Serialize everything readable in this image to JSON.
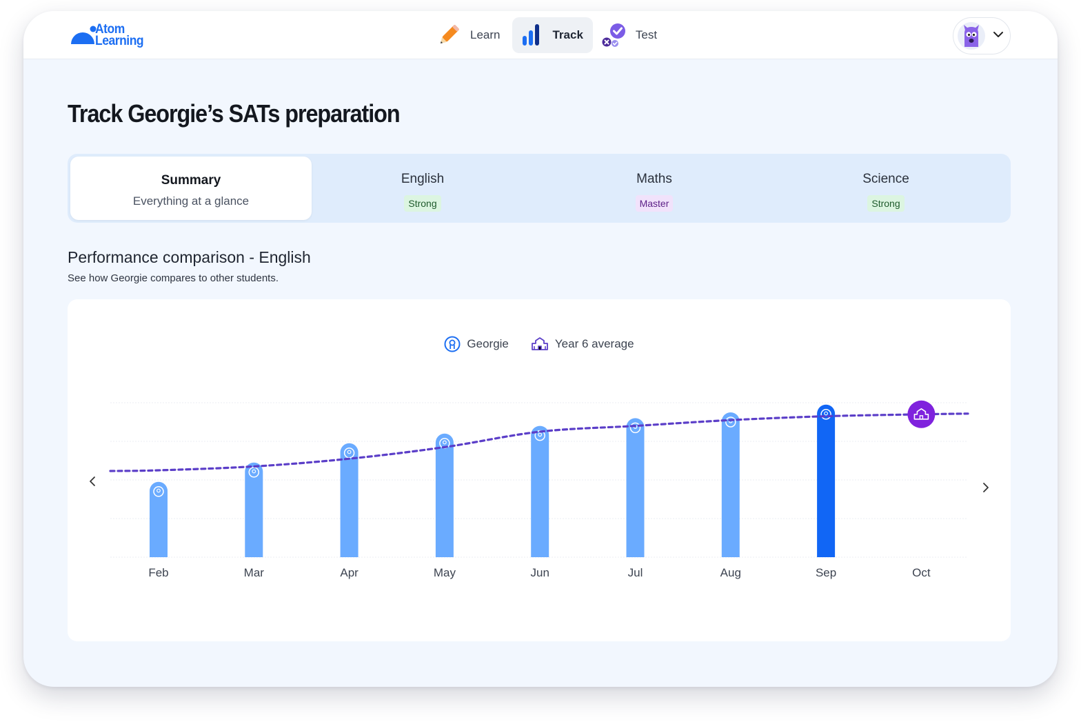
{
  "brand": {
    "line1": "Atom",
    "line2": "Learning"
  },
  "nav": {
    "items": [
      {
        "label": "Learn",
        "icon": "pencil-icon",
        "active": false
      },
      {
        "label": "Track",
        "icon": "bar-chart-icon",
        "active": true
      },
      {
        "label": "Test",
        "icon": "test-check-icon",
        "active": false
      }
    ]
  },
  "profile": {
    "avatar_icon": "monster-avatar-icon",
    "menu_icon": "chevron-down-icon"
  },
  "page": {
    "title": "Track Georgie’s SATs preparation"
  },
  "tabs": [
    {
      "title": "Summary",
      "subtitle": "Everything at a glance",
      "selected": true
    },
    {
      "title": "English",
      "badge": "Strong",
      "badge_type": "strong"
    },
    {
      "title": "Maths",
      "badge": "Master",
      "badge_type": "master"
    },
    {
      "title": "Science",
      "badge": "Strong",
      "badge_type": "strong"
    }
  ],
  "section": {
    "title": "Performance comparison - English",
    "subtitle": "See how Georgie compares to other students."
  },
  "colors": {
    "bar": "#6aabff",
    "bar_current": "#1166f5",
    "average_line": "#5b3ec8",
    "average_marker": "#7f22dd",
    "brand": "#1c6ef2"
  },
  "chart_data": {
    "type": "bar",
    "categories": [
      "Feb",
      "Mar",
      "Apr",
      "May",
      "Jun",
      "Jul",
      "Aug",
      "Sep",
      "Oct"
    ],
    "series": [
      {
        "name": "Georgie",
        "values": [
          39,
          49,
          59,
          64,
          68,
          72,
          75,
          79,
          null
        ],
        "highlight_index": 7
      },
      {
        "name": "Year 6 average",
        "type": "line",
        "style": "dashed",
        "values": [
          45,
          47,
          51,
          57,
          65,
          68,
          71,
          73,
          74
        ]
      }
    ],
    "legend": [
      "Georgie",
      "Year 6 average"
    ],
    "ylim": [
      0,
      80
    ],
    "grid": true,
    "legend_position": "top-center"
  }
}
